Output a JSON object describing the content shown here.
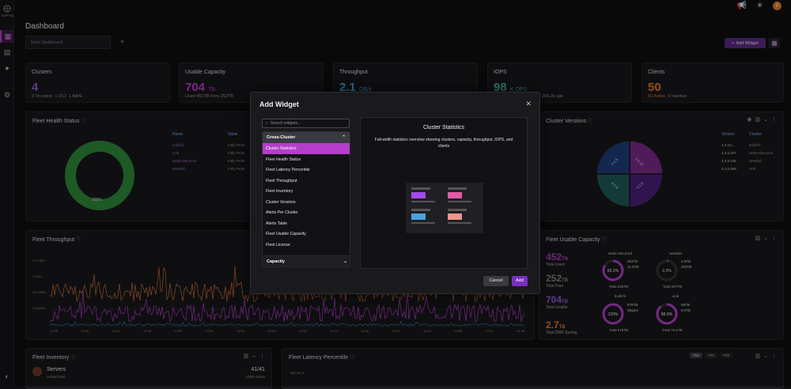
{
  "sidebar": {
    "logo_text": "SOFTIQ"
  },
  "topbar": {
    "avatar_initial": "P"
  },
  "page": {
    "title": "Dashboard",
    "tab_label": "Main Dashboard",
    "add_widget_label": "Add Widget"
  },
  "stats": {
    "clusters": {
      "title": "Clusters",
      "value": "4",
      "sub_onprem": "2 On-prem",
      "sub_oci": "1 OCI",
      "sub_aws": "1 AWS"
    },
    "capacity": {
      "title": "Usable Capacity",
      "value": "704",
      "unit": "TB",
      "sub": "Used 452TB   Free 252TB"
    },
    "throughput": {
      "title": "Throughput",
      "value": "2.1",
      "unit": "GB/s"
    },
    "iops": {
      "title": "IOPS",
      "value": "98",
      "unit": "K OPS",
      "sub": "305.2k ops"
    },
    "clients": {
      "title": "Clients",
      "value": "50",
      "sub_active": "50 Active",
      "sub_inactive": "0 Inactive"
    }
  },
  "panels": {
    "fleet_health": {
      "title": "Fleet Health Status",
      "donut_label": "100%",
      "col_name": "Name",
      "col_value": "Value",
      "rows": [
        {
          "name": "build-fs",
          "value": "Fully Prote"
        },
        {
          "name": "ocid",
          "value": "Fully Prote"
        },
        {
          "name": "weka-nbe-prod",
          "value": "Fully Prote"
        },
        {
          "name": "weekbd",
          "value": "Fully Prote"
        }
      ]
    },
    "cluster_versions": {
      "title": "Cluster Versions",
      "col_version": "Version",
      "col_cluster": "Cluster",
      "rows": [
        {
          "version": "4.4.10...",
          "cluster": "build-fs"
        },
        {
          "version": "4.4.5.107",
          "cluster": "weka-nbe-prod"
        },
        {
          "version": "4.4.9.145",
          "cluster": "weekbd"
        },
        {
          "version": "5.1.0.499",
          "cluster": "ocid"
        }
      ],
      "pie_labels": [
        "4.4.10",
        "4.4.5",
        "4.4.9",
        "5.1.0"
      ]
    },
    "fleet_throughput": {
      "title": "Fleet Throughput",
      "y_ticks": [
        "1.2 GB/s",
        "1 GB/s",
        "500 MB/s",
        "0 Bytes/s"
      ],
      "x_ticks": [
        "13:36",
        "13:40",
        "13:44",
        "13:48",
        "13:52",
        "13:56",
        "14:00",
        "14:04",
        "14:08",
        "14:12",
        "14:16",
        "14:20",
        "14:24",
        "14:28",
        "14:32",
        "14:36"
      ]
    },
    "fleet_usable": {
      "title": "Fleet Usable Capacity",
      "totals": [
        {
          "value": "452",
          "unit": "TB",
          "label": "Total Used"
        },
        {
          "value": "252",
          "unit": "TB",
          "label": "Total Free"
        },
        {
          "value": "704",
          "unit": "TB",
          "label": "Total Usable"
        },
        {
          "value": "2.7",
          "unit": "TB",
          "label": "Total DRR Saving"
        }
      ],
      "clusters": [
        {
          "name": "weka-nbe-prod",
          "pct": "83.2%",
          "used": "204TB",
          "free": "41.5TB",
          "total": "Total 245TB"
        },
        {
          "name": "weekbd",
          "pct": "2.2%",
          "used": "4.6TB",
          "free": "203TB",
          "total": "Total 207TB"
        },
        {
          "name": "build-fs",
          "pct": "100%",
          "used": "575TB",
          "free": "0Bytes",
          "total": "Total 575TB"
        },
        {
          "name": "ocid",
          "pct": "88.9%",
          "used": "68TB",
          "free": "8.5TB",
          "total": "Total 76.5TB"
        }
      ]
    },
    "fleet_inventory": {
      "title": "Fleet Inventory",
      "item": "Servers",
      "item_sub": "Active/Total",
      "count": "41/41",
      "count_sub": "100% active"
    },
    "fleet_latency": {
      "title": "Fleet Latency Percentile",
      "tick": "965.06 ns",
      "buttons": [
        "P50",
        "P90",
        "P99"
      ]
    }
  },
  "modal": {
    "title": "Add Widget",
    "search_placeholder": "Search widgets...",
    "category": "Cross-Cluster",
    "items": [
      "Cluster Statistics",
      "Fleet Health Status",
      "Fleet Latency Percentile",
      "Fleet Throughput",
      "Fleet Inventory",
      "Cluster Versions",
      "Alerts Per Cluster",
      "Alerts Table",
      "Fleet Usable Capacity",
      "Fleet License"
    ],
    "footer_category": "Capacity",
    "preview_title": "Cluster Statistics",
    "preview_desc": "Full-width statistics overview showing clusters, capacity, throughput, IOPS, and clients",
    "cancel_label": "Cancel",
    "add_label": "Add"
  },
  "colors": {
    "accent": "#b43ec9",
    "purple_num": "#8e5bd6",
    "orange": "#e37b2b",
    "green": "#2f8a3a"
  }
}
